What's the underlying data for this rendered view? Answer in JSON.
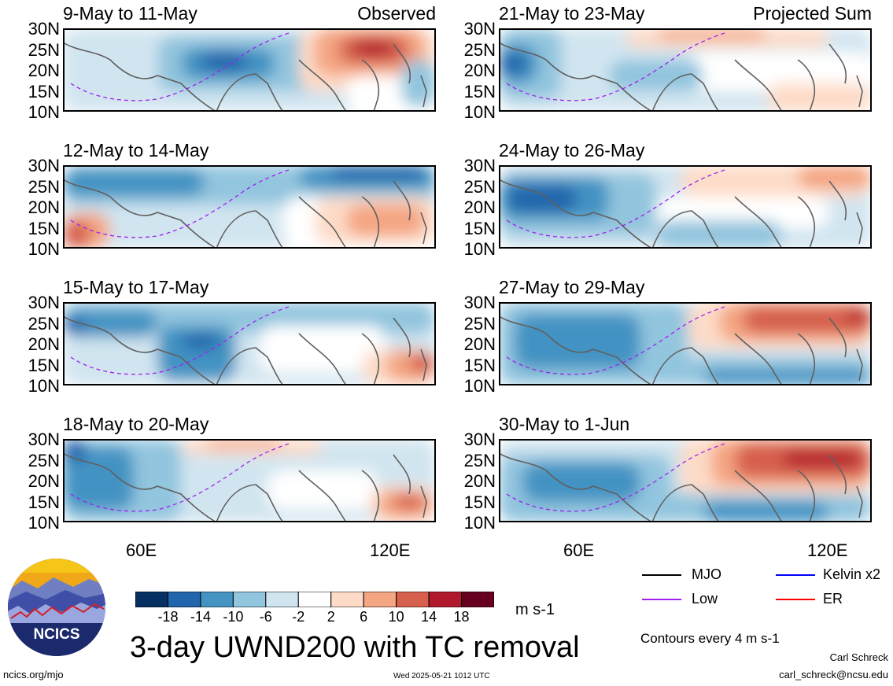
{
  "panels": [
    {
      "title": "9-May to 11-May",
      "label": "Observed",
      "side": "left",
      "row": 0
    },
    {
      "title": "12-May to 14-May",
      "label": "",
      "side": "left",
      "row": 1
    },
    {
      "title": "15-May to 17-May",
      "label": "",
      "side": "left",
      "row": 2
    },
    {
      "title": "18-May to 20-May",
      "label": "",
      "side": "left",
      "row": 3
    },
    {
      "title": "21-May to 23-May",
      "label": "Projected Sum",
      "side": "right",
      "row": 0
    },
    {
      "title": "24-May to 26-May",
      "label": "",
      "side": "right",
      "row": 1
    },
    {
      "title": "27-May to 29-May",
      "label": "",
      "side": "right",
      "row": 2
    },
    {
      "title": "30-May to 1-Jun",
      "label": "",
      "side": "right",
      "row": 3
    }
  ],
  "lat_labels": [
    "30N",
    "25N",
    "20N",
    "15N",
    "10N"
  ],
  "lon_labels": [
    "60E",
    "120E"
  ],
  "colorbar": {
    "colors": [
      "#053061",
      "#2166ac",
      "#4393c3",
      "#92c5de",
      "#d1e5f0",
      "#ffffff",
      "#fddbc7",
      "#f4a582",
      "#d6604d",
      "#b2182b",
      "#67001f"
    ],
    "ticks": [
      "-18",
      "-14",
      "-10",
      "-6",
      "-2",
      "2",
      "6",
      "10",
      "14",
      "18"
    ],
    "units": "m s-1"
  },
  "main_title": "3-day UWND200 with TC removal",
  "legend": {
    "items": [
      {
        "label": "MJO",
        "color": "#000000"
      },
      {
        "label": "Kelvin x2",
        "color": "#0000ff"
      },
      {
        "label": "Low",
        "color": "#a020f0"
      },
      {
        "label": "ER",
        "color": "#ff0000"
      }
    ],
    "contour_note": "Contours every 4 m s-1"
  },
  "logo": {
    "text": "NCICS"
  },
  "footer": {
    "url": "ncics.org/mjo",
    "timestamp": "Wed 2025-05-21 1012 UTC",
    "author": "Carl Schreck",
    "email": "carl_schreck@ncsu.edu"
  }
}
